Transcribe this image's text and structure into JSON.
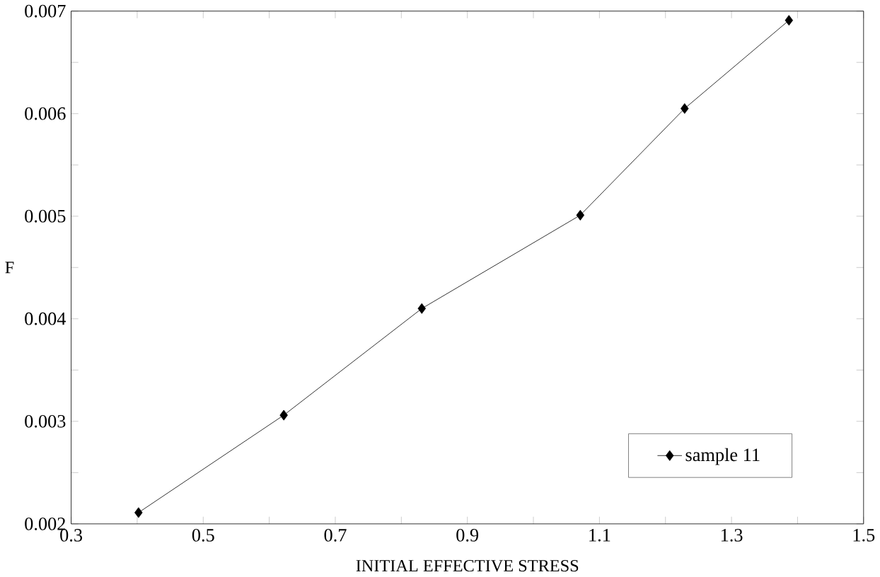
{
  "chart_data": {
    "type": "line",
    "xlabel": "INITIAL EFFECTIVE STRESS",
    "ylabel": "F",
    "xlim": [
      0.3,
      1.5
    ],
    "ylim": [
      0.002,
      0.007
    ],
    "xticks": [
      0.3,
      {
        "value": 0.4,
        "label": null
      },
      0.5,
      {
        "value": 0.6,
        "label": null
      },
      0.7,
      {
        "value": 0.8,
        "label": null
      },
      0.9,
      {
        "value": 1.0,
        "label": null
      },
      1.1,
      {
        "value": 1.2,
        "label": null
      },
      1.3,
      {
        "value": 1.4,
        "label": null
      },
      1.5
    ],
    "yticks": [
      0.002,
      {
        "value": 0.0025,
        "label": null
      },
      0.003,
      {
        "value": 0.0035,
        "label": null
      },
      0.004,
      {
        "value": 0.0045,
        "label": null
      },
      0.005,
      {
        "value": 0.0055,
        "label": null
      },
      0.006,
      {
        "value": 0.0065,
        "label": null
      },
      0.007
    ],
    "x": [
      0.402,
      0.622,
      0.831,
      1.071,
      1.229,
      1.387
    ],
    "series": [
      {
        "name": "sample     11",
        "color": "#000000",
        "values": [
          0.00211,
          0.00306,
          0.0041,
          0.00501,
          0.00605,
          0.00691
        ]
      }
    ],
    "marker": "diamond",
    "line_style": "solid",
    "legend": "bottom right",
    "grid": false
  }
}
